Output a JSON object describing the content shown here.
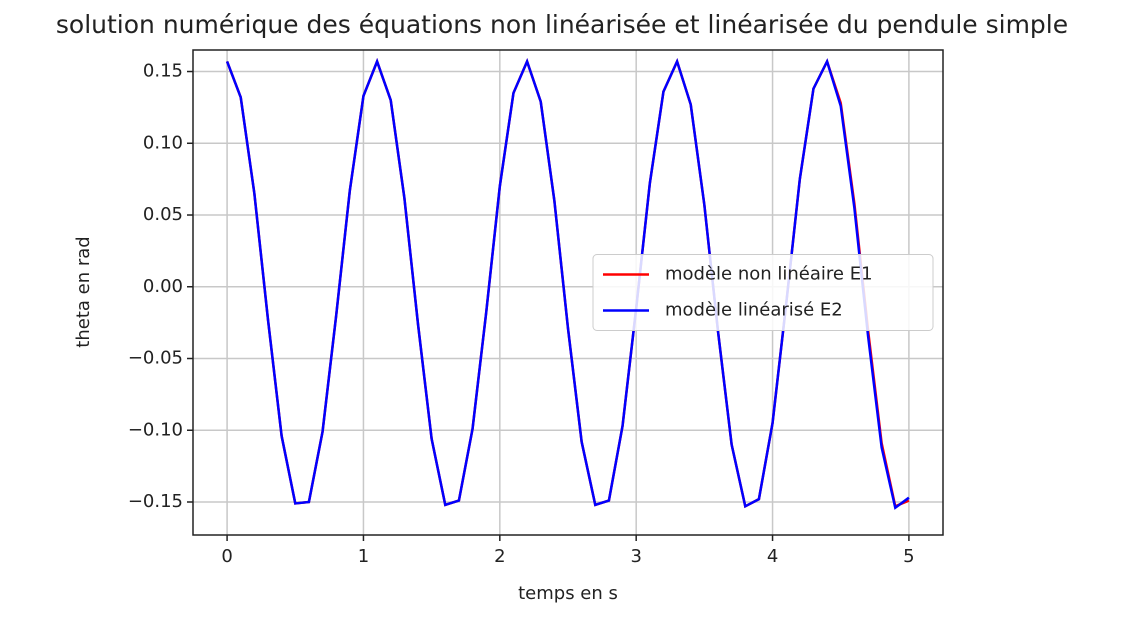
{
  "chart_data": {
    "type": "line",
    "title": "solution numérique des équations non linéarisée et linéarisée du pendule simple",
    "xlabel": "temps en s",
    "ylabel": "theta en rad",
    "x": [
      0,
      0.1,
      0.2,
      0.3,
      0.4,
      0.5,
      0.6,
      0.7,
      0.8,
      0.9,
      1,
      1.1,
      1.2,
      1.3,
      1.4,
      1.5,
      1.6,
      1.7,
      1.8,
      1.9,
      2,
      2.1,
      2.2,
      2.3,
      2.4,
      2.5,
      2.6,
      2.7,
      2.8,
      2.9,
      3,
      3.1,
      3.2,
      3.3,
      3.4,
      3.5,
      3.6,
      3.7,
      3.8,
      3.9,
      4,
      4.1,
      4.2,
      4.3,
      4.4,
      4.5,
      4.6,
      4.7,
      4.8,
      4.9,
      5
    ],
    "series": [
      {
        "name": "modèle non linéaire E1",
        "color": "#ff0000",
        "values": [
          0.157,
          0.132,
          0.065,
          -0.023,
          -0.104,
          -0.151,
          -0.15,
          -0.101,
          -0.02,
          0.067,
          0.133,
          0.157,
          0.13,
          0.062,
          -0.026,
          -0.106,
          -0.152,
          -0.149,
          -0.099,
          -0.018,
          0.07,
          0.135,
          0.157,
          0.129,
          0.06,
          -0.029,
          -0.108,
          -0.152,
          -0.149,
          -0.097,
          -0.015,
          0.072,
          0.136,
          0.157,
          0.127,
          0.057,
          -0.031,
          -0.11,
          -0.153,
          -0.148,
          -0.095,
          -0.012,
          0.075,
          0.138,
          0.157,
          0.128,
          0.058,
          -0.03,
          -0.109,
          -0.153,
          -0.149
        ]
      },
      {
        "name": "modèle linéarisé E2",
        "color": "#0000ff",
        "values": [
          0.157,
          0.132,
          0.065,
          -0.023,
          -0.104,
          -0.151,
          -0.15,
          -0.101,
          -0.02,
          0.067,
          0.133,
          0.157,
          0.13,
          0.062,
          -0.026,
          -0.106,
          -0.152,
          -0.149,
          -0.099,
          -0.018,
          0.07,
          0.135,
          0.157,
          0.129,
          0.06,
          -0.029,
          -0.108,
          -0.152,
          -0.149,
          -0.097,
          -0.015,
          0.072,
          0.136,
          0.157,
          0.127,
          0.057,
          -0.031,
          -0.11,
          -0.153,
          -0.148,
          -0.095,
          -0.012,
          0.075,
          0.138,
          0.157,
          0.126,
          0.055,
          -0.034,
          -0.112,
          -0.154,
          -0.147
        ]
      }
    ],
    "xlim": [
      -0.25,
      5.25
    ],
    "ylim": [
      -0.173,
      0.165
    ],
    "xticks": [
      0,
      1,
      2,
      3,
      4,
      5
    ],
    "yticks": [
      {
        "value": 0.15,
        "label": "0.15"
      },
      {
        "value": 0.1,
        "label": "0.10"
      },
      {
        "value": 0.05,
        "label": "0.05"
      },
      {
        "value": 0,
        "label": "0.00"
      },
      {
        "value": -0.05,
        "label": "−0.05"
      },
      {
        "value": -0.1,
        "label": "−0.10"
      },
      {
        "value": -0.15,
        "label": "−0.15"
      }
    ],
    "grid": true,
    "legend": "right"
  }
}
